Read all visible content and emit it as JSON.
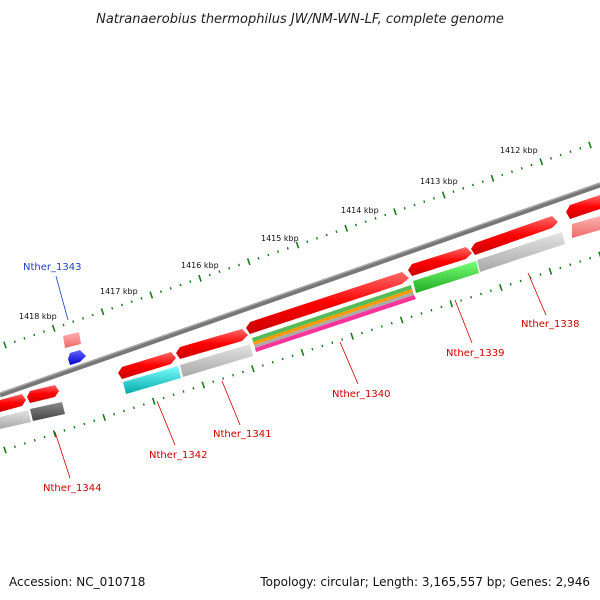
{
  "title": "Natranaerobius thermophilus JW/NM-WN-LF, complete genome",
  "footer": {
    "accession": "Accession: NC_010718",
    "topology": "Topology: circular; Length: 3,165,557 bp; Genes: 2,946"
  },
  "scale_labels": [
    "1412 kbp",
    "1413 kbp",
    "1414 kbp",
    "1415 kbp",
    "1416 kbp",
    "1417 kbp",
    "1418 kbp"
  ],
  "genes": [
    {
      "label": "Nther_1338",
      "color": "#cc0000"
    },
    {
      "label": "Nther_1339",
      "color": "#cc0000"
    },
    {
      "label": "Nther_1340",
      "color": "#cc0000"
    },
    {
      "label": "Nther_1341",
      "color": "#cc0000"
    },
    {
      "label": "Nther_1342",
      "color": "#cc0000"
    },
    {
      "label": "Nther_1343",
      "color": "#1f3fbf"
    },
    {
      "label": "Nther_1344",
      "color": "#cc0000"
    }
  ],
  "colors": {
    "gene_forward": "#ff0000",
    "backbone": "#888888",
    "tick": "#1e7a1e",
    "cog_grey": "#bbbbbb",
    "cog_green": "#33cc33",
    "cog_cyan": "#22cccc",
    "cog_pink": "#ff33aa",
    "cog_orange": "#ff9900",
    "blue_feature": "#0000ff"
  }
}
